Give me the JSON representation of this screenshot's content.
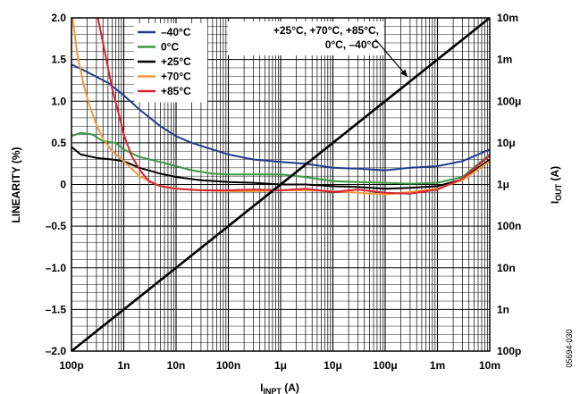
{
  "chart_data": {
    "type": "line",
    "xlabel": "I",
    "xlabel_sub": "INPT",
    "xlabel_unit": " (A)",
    "ylabel": "LINEARITY (%)",
    "y2label": "I",
    "y2label_sub": "OUT",
    "y2label_unit": " (A)",
    "x_scale": "log",
    "xlim": [
      1e-10,
      0.01
    ],
    "ylim": [
      -2.0,
      2.0
    ],
    "y2_scale": "log",
    "y2lim": [
      1e-10,
      0.01
    ],
    "grid": true,
    "legend_position": "top-left",
    "x_ticks": [
      {
        "value": 1e-10,
        "label": "100p"
      },
      {
        "value": 1e-09,
        "label": "1n"
      },
      {
        "value": 1e-08,
        "label": "10n"
      },
      {
        "value": 1e-07,
        "label": "100n"
      },
      {
        "value": 1e-06,
        "label": "1μ"
      },
      {
        "value": 1e-05,
        "label": "10μ"
      },
      {
        "value": 0.0001,
        "label": "100μ"
      },
      {
        "value": 0.001,
        "label": "1m"
      },
      {
        "value": 0.01,
        "label": "10m"
      }
    ],
    "y_ticks": [
      {
        "value": 2.0,
        "label": "2.0"
      },
      {
        "value": 1.5,
        "label": "1.5"
      },
      {
        "value": 1.0,
        "label": "1.0"
      },
      {
        "value": 0.5,
        "label": "0.5"
      },
      {
        "value": 0,
        "label": "0"
      },
      {
        "value": -0.5,
        "label": "–0.5"
      },
      {
        "value": -1.0,
        "label": "–1.0"
      },
      {
        "value": -1.5,
        "label": "–1.5"
      },
      {
        "value": -2.0,
        "label": "–2.0"
      }
    ],
    "y2_ticks": [
      {
        "value": 0.01,
        "label": "10m"
      },
      {
        "value": 0.001,
        "label": "1m"
      },
      {
        "value": 0.0001,
        "label": "100μ"
      },
      {
        "value": 1e-05,
        "label": "10μ"
      },
      {
        "value": 1e-06,
        "label": "1μ"
      },
      {
        "value": 1e-07,
        "label": "100n"
      },
      {
        "value": 1e-08,
        "label": "10n"
      },
      {
        "value": 1e-09,
        "label": "1n"
      },
      {
        "value": 1e-10,
        "label": "100p"
      }
    ],
    "series": [
      {
        "name": "–40°C",
        "color": "#1f3d8c",
        "axis": "left",
        "x": [
          1e-10,
          2e-10,
          5e-10,
          1e-09,
          2e-09,
          5e-09,
          1e-08,
          2e-08,
          5e-08,
          1e-07,
          3e-07,
          1e-06,
          3e-06,
          1e-05,
          3e-05,
          0.0001,
          0.0003,
          0.001,
          0.003,
          0.01
        ],
        "y": [
          1.44,
          1.35,
          1.22,
          1.07,
          0.9,
          0.7,
          0.58,
          0.5,
          0.42,
          0.36,
          0.3,
          0.27,
          0.25,
          0.2,
          0.19,
          0.17,
          0.2,
          0.22,
          0.28,
          0.42
        ]
      },
      {
        "name": "0°C",
        "color": "#3a9a44",
        "axis": "left",
        "x": [
          1e-10,
          1.5e-10,
          2.5e-10,
          4e-10,
          7e-10,
          1e-09,
          2e-09,
          5e-09,
          1e-08,
          2e-08,
          5e-08,
          1e-07,
          3e-07,
          1e-06,
          3e-06,
          1e-05,
          3e-05,
          0.0001,
          0.0003,
          0.001,
          0.003,
          0.01
        ],
        "y": [
          0.58,
          0.62,
          0.6,
          0.52,
          0.5,
          0.42,
          0.33,
          0.27,
          0.22,
          0.17,
          0.13,
          0.12,
          0.12,
          0.12,
          0.09,
          0.04,
          0.03,
          0.02,
          0.01,
          0.02,
          0.09,
          0.36
        ]
      },
      {
        "name": "+25°C",
        "color": "#000000",
        "axis": "left",
        "x": [
          1e-10,
          1.5e-10,
          3e-10,
          6e-10,
          1e-09,
          2e-09,
          5e-09,
          1e-08,
          3e-08,
          1e-07,
          3e-07,
          1e-06,
          3e-06,
          1e-05,
          3e-05,
          0.0001,
          0.0003,
          0.001,
          0.003,
          0.01
        ],
        "y": [
          0.45,
          0.36,
          0.32,
          0.3,
          0.28,
          0.2,
          0.13,
          0.09,
          0.05,
          0.03,
          0.02,
          0.0,
          0.0,
          -0.02,
          -0.03,
          -0.05,
          -0.04,
          -0.02,
          0.06,
          0.3
        ]
      },
      {
        "name": "+70°C",
        "color": "#f39a3c",
        "axis": "left",
        "x": [
          1.05e-10,
          1.3e-10,
          1.7e-10,
          2.2e-10,
          3e-10,
          4e-10,
          6e-10,
          1e-09,
          2e-09,
          5e-09,
          1e-08,
          3e-08,
          1e-07,
          3e-07,
          1e-06,
          3e-06,
          1e-05,
          3e-05,
          0.0001,
          0.0003,
          0.001,
          0.003,
          0.01
        ],
        "y": [
          2.0,
          1.55,
          1.2,
          0.95,
          0.72,
          0.55,
          0.4,
          0.28,
          0.1,
          -0.02,
          -0.05,
          -0.07,
          -0.08,
          -0.08,
          -0.07,
          -0.07,
          -0.08,
          -0.1,
          -0.12,
          -0.09,
          -0.05,
          0.05,
          0.28
        ]
      },
      {
        "name": "+85°C",
        "color": "#d62430",
        "axis": "left",
        "x": [
          3.2e-10,
          4e-10,
          5e-10,
          6e-10,
          8e-10,
          1e-09,
          1.4e-09,
          2e-09,
          3e-09,
          5e-09,
          1e-08,
          3e-08,
          1e-07,
          3e-07,
          1e-06,
          3e-06,
          1e-05,
          3e-05,
          0.0001,
          0.0003,
          0.001,
          0.003,
          0.01
        ],
        "y": [
          2.0,
          1.7,
          1.4,
          1.15,
          0.85,
          0.6,
          0.35,
          0.18,
          0.04,
          -0.02,
          -0.05,
          -0.07,
          -0.07,
          -0.06,
          -0.07,
          -0.05,
          -0.09,
          -0.06,
          -0.1,
          -0.11,
          -0.06,
          0.07,
          0.35
        ]
      },
      {
        "name": "",
        "color": "#000000",
        "axis": "right",
        "x": [
          1e-10,
          0.01
        ],
        "y": [
          1e-10,
          0.01
        ]
      }
    ],
    "annotations": [
      {
        "lines": [
          "+25°C, +70°C, +85°C,",
          "0°C, –40°C"
        ]
      }
    ]
  },
  "figure_id": "05694-030"
}
